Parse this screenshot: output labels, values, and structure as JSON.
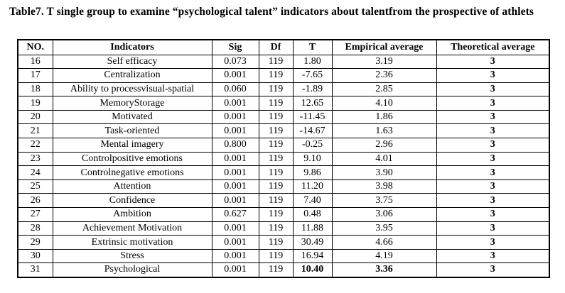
{
  "title": "Table7. T single group to examine “psychological talent” indicators about talentfrom the prospective of athlets",
  "table": {
    "columns": [
      {
        "key": "no",
        "label": "NO."
      },
      {
        "key": "indicator",
        "label": "Indicators"
      },
      {
        "key": "sig",
        "label": "Sig"
      },
      {
        "key": "df",
        "label": "Df"
      },
      {
        "key": "t",
        "label": "T"
      },
      {
        "key": "empirical",
        "label": "Empirical average"
      },
      {
        "key": "theoretical",
        "label": "Theoretical average"
      }
    ],
    "rows": [
      {
        "no": "16",
        "indicator": "Self efficacy",
        "sig": "0.073",
        "df": "119",
        "t": "1.80",
        "empirical": "3.19",
        "theoretical": "3"
      },
      {
        "no": "17",
        "indicator": "Centralization",
        "sig": "0.001",
        "df": "119",
        "t": "-7.65",
        "empirical": "2.36",
        "theoretical": "3"
      },
      {
        "no": "18",
        "indicator": "Ability to processvisual-spatial",
        "sig": "0.060",
        "df": "119",
        "t": "-1.89",
        "empirical": "2.85",
        "theoretical": "3"
      },
      {
        "no": "19",
        "indicator": "MemoryStorage",
        "sig": "0.001",
        "df": "119",
        "t": "12.65",
        "empirical": "4.10",
        "theoretical": "3"
      },
      {
        "no": "20",
        "indicator": "Motivated",
        "sig": "0.001",
        "df": "119",
        "t": "-11.45",
        "empirical": "1.86",
        "theoretical": "3"
      },
      {
        "no": "21",
        "indicator": "Task-oriented",
        "sig": "0.001",
        "df": "119",
        "t": "-14.67",
        "empirical": "1.63",
        "theoretical": "3"
      },
      {
        "no": "22",
        "indicator": "Mental imagery",
        "sig": "0.800",
        "df": "119",
        "t": "-0.25",
        "empirical": "2.96",
        "theoretical": "3"
      },
      {
        "no": "23",
        "indicator": "Controlpositive emotions",
        "sig": "0.001",
        "df": "119",
        "t": "9.10",
        "empirical": "4.01",
        "theoretical": "3"
      },
      {
        "no": "24",
        "indicator": "Controlnegative emotions",
        "sig": "0.001",
        "df": "119",
        "t": "9.86",
        "empirical": "3.90",
        "theoretical": "3"
      },
      {
        "no": "25",
        "indicator": "Attention",
        "sig": "0.001",
        "df": "119",
        "t": "11.20",
        "empirical": "3.98",
        "theoretical": "3"
      },
      {
        "no": "26",
        "indicator": "Confidence",
        "sig": "0.001",
        "df": "119",
        "t": "7.40",
        "empirical": "3.75",
        "theoretical": "3"
      },
      {
        "no": "27",
        "indicator": "Ambition",
        "sig": "0.627",
        "df": "119",
        "t": "0.48",
        "empirical": "3.06",
        "theoretical": "3"
      },
      {
        "no": "28",
        "indicator": "Achievement Motivation",
        "sig": "0.001",
        "df": "119",
        "t": "11.88",
        "empirical": "3.95",
        "theoretical": "3"
      },
      {
        "no": "29",
        "indicator": "Extrinsic motivation",
        "sig": "0.001",
        "df": "119",
        "t": "30.49",
        "empirical": "4.66",
        "theoretical": "3"
      },
      {
        "no": "30",
        "indicator": "Stress",
        "sig": "0.001",
        "df": "119",
        "t": "16.94",
        "empirical": "4.19",
        "theoretical": "3"
      },
      {
        "no": "31",
        "indicator": "Psychological",
        "sig": "0.001",
        "df": "119",
        "t": "10.40",
        "empirical": "3.36",
        "theoretical": "3",
        "bold_cells": [
          "t",
          "empirical"
        ]
      }
    ]
  }
}
